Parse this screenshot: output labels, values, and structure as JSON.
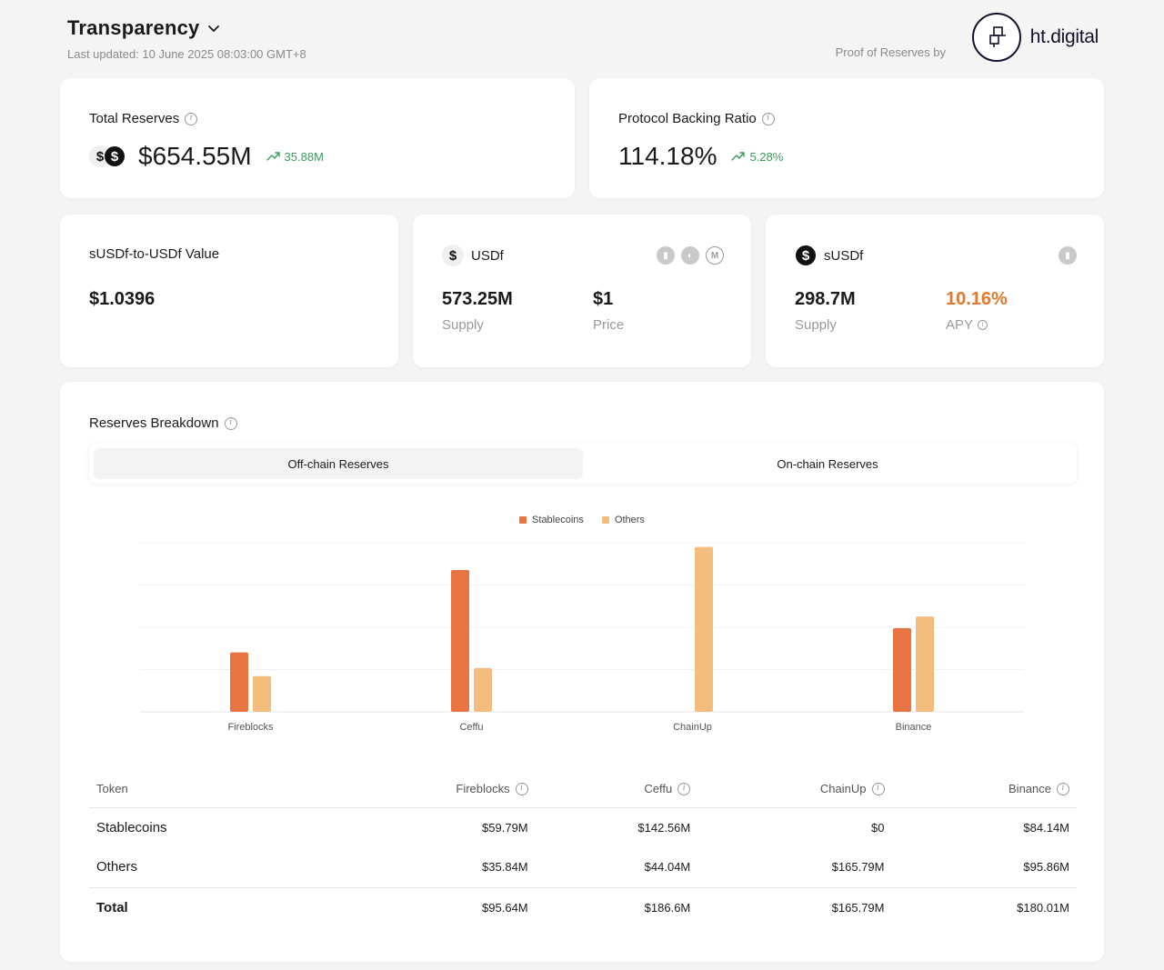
{
  "header": {
    "title": "Transparency",
    "updated": "Last updated: 10 June 2025 08:03:00 GMT+8",
    "proof_by": "Proof of Reserves by",
    "logo_text": "ht.digital"
  },
  "total_reserves": {
    "label": "Total Reserves",
    "value": "$654.55M",
    "change": "35.88M"
  },
  "backing_ratio": {
    "label": "Protocol Backing Ratio",
    "value": "114.18%",
    "change": "5.28%"
  },
  "susdf_value": {
    "label": "sUSDf-to-USDf Value",
    "value": "$1.0396"
  },
  "usdf": {
    "label": "USDf",
    "supply": "573.25M",
    "supply_label": "Supply",
    "price": "$1",
    "price_label": "Price"
  },
  "susdf": {
    "label": "sUSDf",
    "supply": "298.7M",
    "supply_label": "Supply",
    "apy": "10.16%",
    "apy_label": "APY"
  },
  "breakdown": {
    "title": "Reserves Breakdown",
    "tabs": [
      "Off-chain Reserves",
      "On-chain Reserves"
    ],
    "active_tab": 0
  },
  "chart_data": {
    "type": "bar",
    "categories": [
      "Fireblocks",
      "Ceffu",
      "ChainUp",
      "Binance"
    ],
    "series": [
      {
        "name": "Stablecoins",
        "values": [
          59.79,
          142.56,
          0,
          84.14
        ],
        "color": "#e87442"
      },
      {
        "name": "Others",
        "values": [
          35.84,
          44.04,
          165.79,
          95.86
        ],
        "color": "#f3bd7d"
      }
    ],
    "ylim": [
      0,
      170
    ],
    "unit": "$M"
  },
  "table": {
    "headers": [
      "Token",
      "Fireblocks",
      "Ceffu",
      "ChainUp",
      "Binance"
    ],
    "rows": [
      {
        "token": "Stablecoins",
        "values": [
          "$59.79M",
          "$142.56M",
          "$0",
          "$84.14M"
        ]
      },
      {
        "token": "Others",
        "values": [
          "$35.84M",
          "$44.04M",
          "$165.79M",
          "$95.86M"
        ]
      },
      {
        "token": "Total",
        "values": [
          "$95.64M",
          "$186.6M",
          "$165.79M",
          "$180.01M"
        ]
      }
    ]
  },
  "colors": {
    "accent_orange": "#e87442",
    "accent_light": "#f3bd7d",
    "positive": "#3a9b5c",
    "apy": "#e2782e"
  }
}
